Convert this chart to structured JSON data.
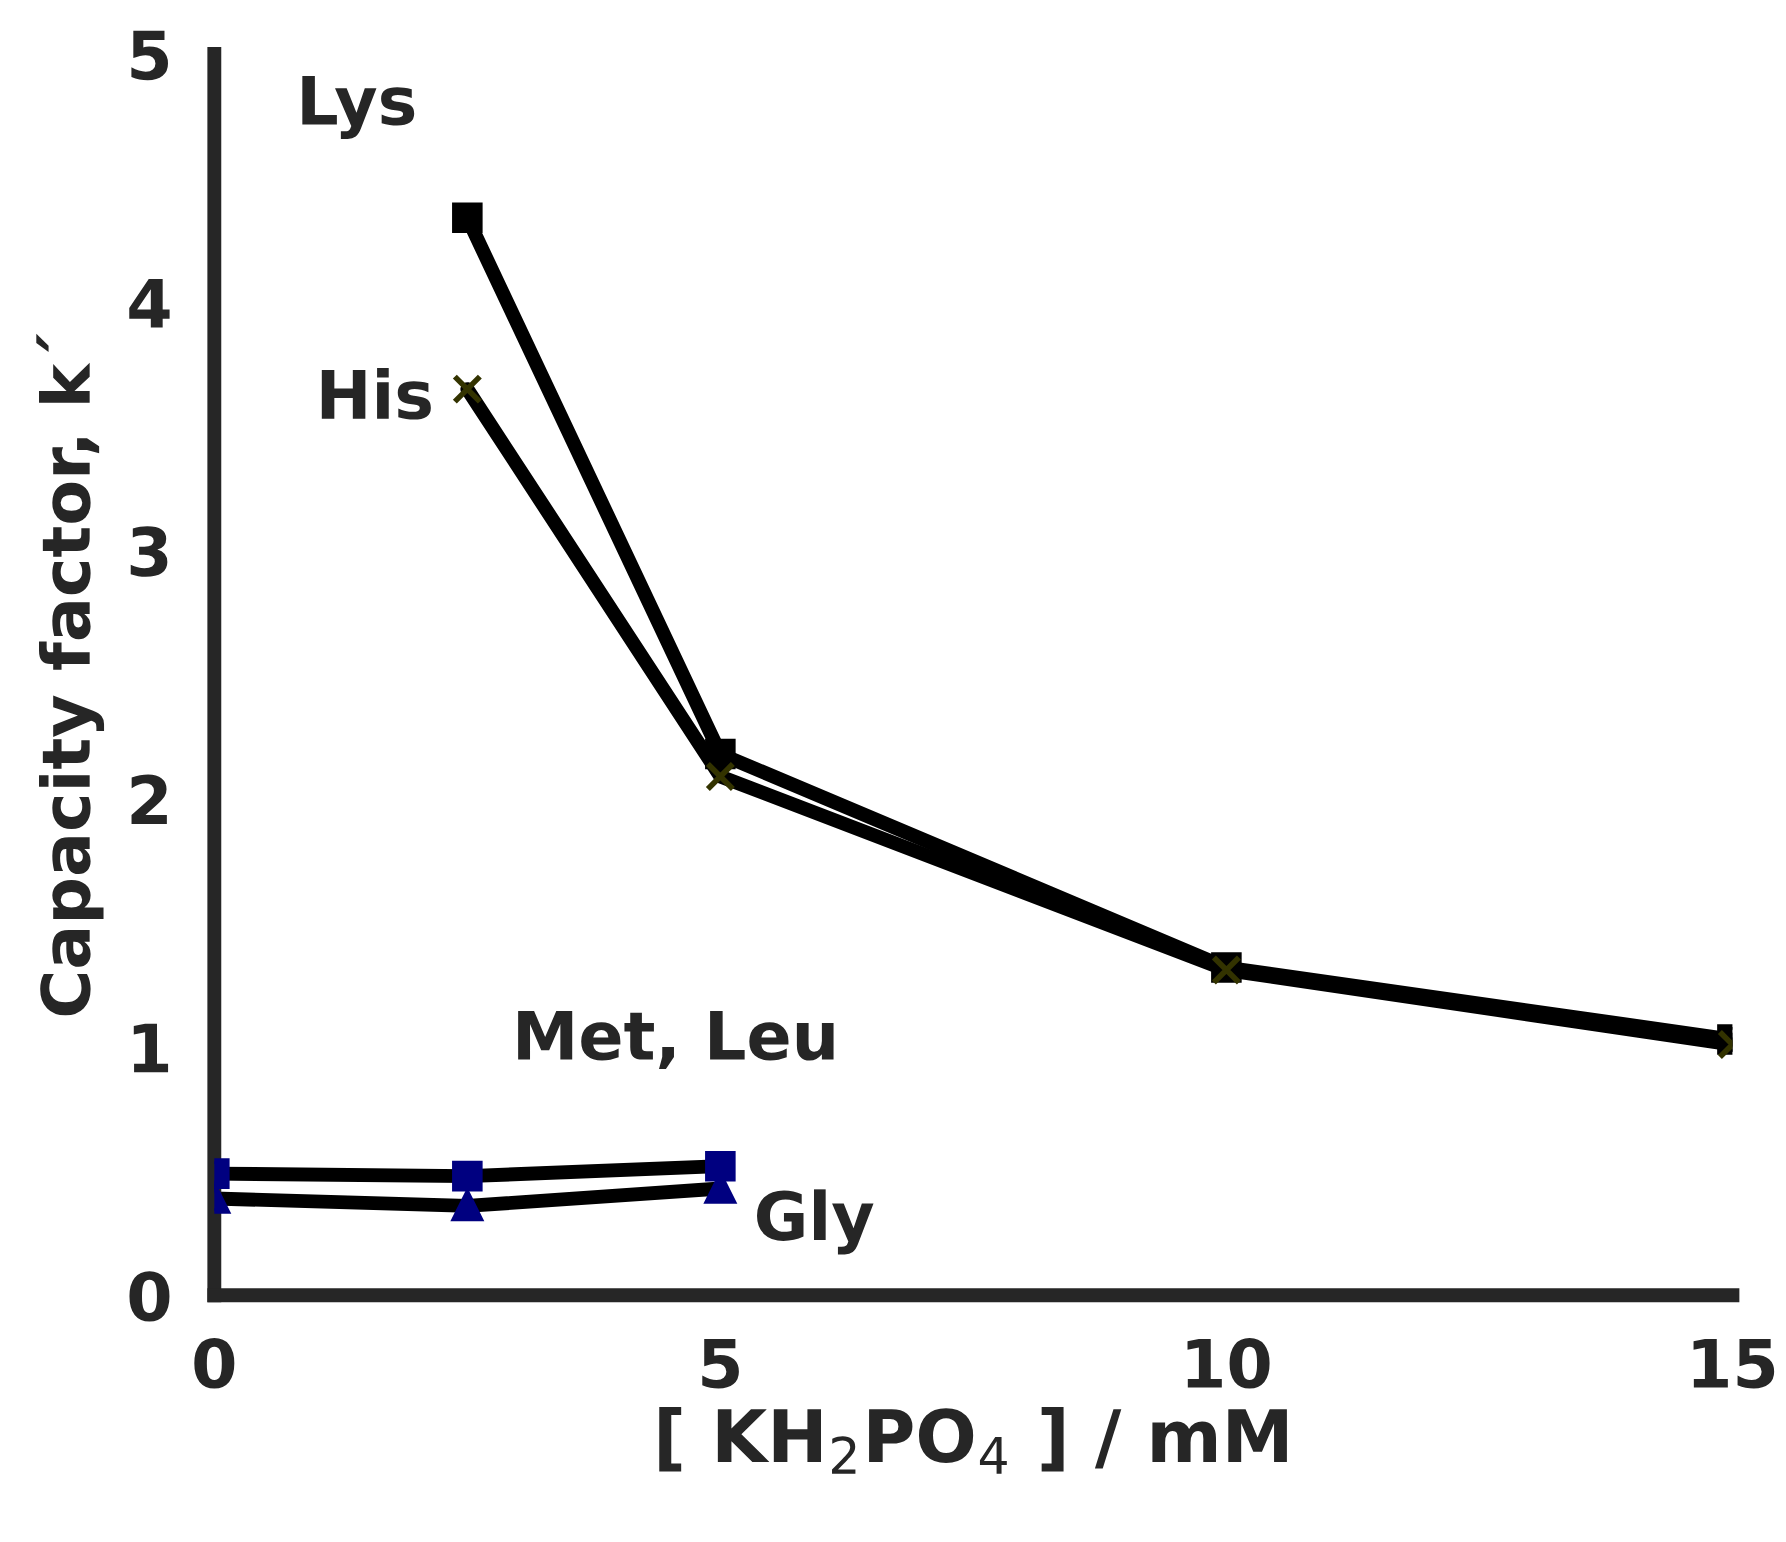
{
  "chart_data": {
    "type": "line",
    "xlabel": "[ KH$_{2}$PO$_{4}$ ] / mM",
    "ylabel": "Capacity factor, k´",
    "xlim": [
      0,
      15
    ],
    "xticks": [
      0,
      5,
      10,
      15
    ],
    "ylim": [
      0,
      5
    ],
    "yticks": [
      0,
      1,
      2,
      3,
      4,
      5
    ],
    "grid": false,
    "legend": false,
    "series": [
      {
        "name": "Lys",
        "color": "#000000",
        "marker": "square",
        "x": [
          2.5,
          5,
          10,
          15
        ],
        "values": [
          4.34,
          2.18,
          1.32,
          1.03
        ]
      },
      {
        "name": "His",
        "color": "#333300",
        "marker": "cross",
        "x": [
          2.5,
          5,
          10,
          15
        ],
        "values": [
          3.65,
          2.09,
          1.31,
          1.01
        ]
      },
      {
        "name": "Met, Leu",
        "color": "#000080",
        "marker": "square",
        "x": [
          0,
          2.5,
          5
        ],
        "values": [
          0.49,
          0.48,
          0.52
        ]
      },
      {
        "name": "Gly",
        "color": "#000080",
        "marker": "triangle",
        "x": [
          0,
          2.5,
          5
        ],
        "values": [
          0.39,
          0.36,
          0.43
        ]
      }
    ]
  }
}
